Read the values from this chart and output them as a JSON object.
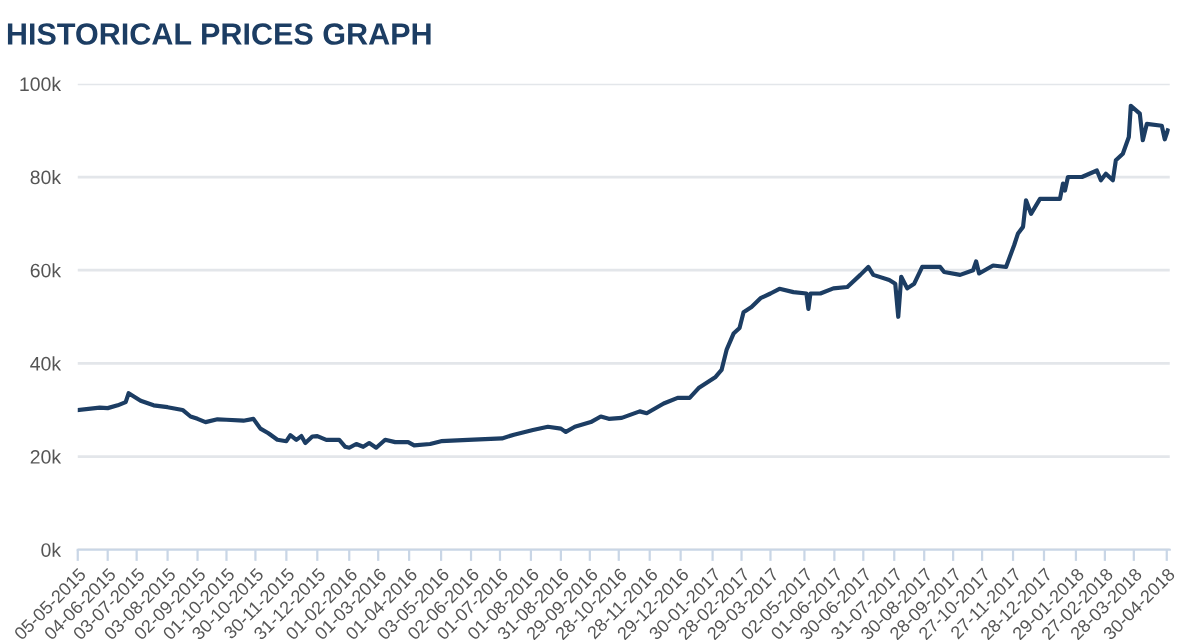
{
  "chart_data": {
    "type": "line",
    "title": "HISTORICAL PRICES GRAPH",
    "x": [
      "2015-05-05",
      "2015-05-27",
      "2015-06-04",
      "2015-06-14",
      "2015-06-22",
      "2015-06-25",
      "2015-07-07",
      "2015-07-20",
      "2015-08-03",
      "2015-08-18",
      "2015-08-26",
      "2015-09-02",
      "2015-09-10",
      "2015-09-22",
      "2015-10-01",
      "2015-10-18",
      "2015-10-28",
      "2015-11-04",
      "2015-11-12",
      "2015-11-21",
      "2015-11-30",
      "2015-12-04",
      "2015-12-10",
      "2015-12-15",
      "2015-12-19",
      "2015-12-26",
      "2015-12-31",
      "2016-01-09",
      "2016-01-22",
      "2016-01-28",
      "2016-02-01",
      "2016-02-08",
      "2016-02-15",
      "2016-02-21",
      "2016-02-28",
      "2016-03-08",
      "2016-03-18",
      "2016-03-31",
      "2016-04-06",
      "2016-04-22",
      "2016-05-03",
      "2016-05-30",
      "2016-07-03",
      "2016-07-15",
      "2016-08-03",
      "2016-08-18",
      "2016-08-31",
      "2016-09-05",
      "2016-09-14",
      "2016-09-30",
      "2016-10-10",
      "2016-10-18",
      "2016-10-31",
      "2016-11-18",
      "2016-11-25",
      "2016-12-12",
      "2016-12-26",
      "2017-01-07",
      "2017-01-16",
      "2017-02-02",
      "2017-02-08",
      "2017-02-13",
      "2017-02-20",
      "2017-02-26",
      "2017-03-02",
      "2017-03-10",
      "2017-03-19",
      "2017-03-29",
      "2017-04-07",
      "2017-04-21",
      "2017-05-04",
      "2017-05-06",
      "2017-05-08",
      "2017-05-18",
      "2017-05-31",
      "2017-06-14",
      "2017-06-27",
      "2017-07-05",
      "2017-07-10",
      "2017-07-26",
      "2017-08-01",
      "2017-08-04",
      "2017-08-07",
      "2017-08-13",
      "2017-08-20",
      "2017-08-28",
      "2017-09-15",
      "2017-09-19",
      "2017-10-05",
      "2017-10-18",
      "2017-10-21",
      "2017-10-24",
      "2017-11-07",
      "2017-11-20",
      "2017-11-28",
      "2017-12-02",
      "2017-12-07",
      "2017-12-10",
      "2017-12-15",
      "2017-12-24",
      "2018-01-13",
      "2018-01-16",
      "2018-01-18",
      "2018-01-21",
      "2018-02-04",
      "2018-02-19",
      "2018-02-23",
      "2018-02-28",
      "2018-03-07",
      "2018-03-10",
      "2018-03-17",
      "2018-03-23",
      "2018-03-25",
      "2018-04-03",
      "2018-04-06",
      "2018-04-10",
      "2018-04-25",
      "2018-04-28",
      "2018-05-01"
    ],
    "series": [
      {
        "color": "#1c3d63",
        "values": [
          30.0,
          30.5,
          30.4,
          31.0,
          31.7,
          33.6,
          32.0,
          31.0,
          30.6,
          30.0,
          28.6,
          28.1,
          27.4,
          28.0,
          27.9,
          27.7,
          28.1,
          26.0,
          25.0,
          23.6,
          23.3,
          24.6,
          23.6,
          24.4,
          22.9,
          24.3,
          24.4,
          23.6,
          23.6,
          22.1,
          21.9,
          22.7,
          22.1,
          22.9,
          21.9,
          23.6,
          23.1,
          23.1,
          22.4,
          22.7,
          23.3,
          23.6,
          23.9,
          24.7,
          25.7,
          26.4,
          26.0,
          25.3,
          26.4,
          27.4,
          28.6,
          28.1,
          28.3,
          29.7,
          29.3,
          31.4,
          32.6,
          32.6,
          34.7,
          37.1,
          38.6,
          42.9,
          46.4,
          47.6,
          51.0,
          52.1,
          54.0,
          55.0,
          56.0,
          55.3,
          55.0,
          51.7,
          55.0,
          55.0,
          56.1,
          56.4,
          59.0,
          60.7,
          59.0,
          57.9,
          57.1,
          50.0,
          58.6,
          56.1,
          57.1,
          60.7,
          60.7,
          59.6,
          59.0,
          60.0,
          61.9,
          59.3,
          61.0,
          60.7,
          65.3,
          67.9,
          69.3,
          75.0,
          72.1,
          75.3,
          75.3,
          78.6,
          77.1,
          80.0,
          80.0,
          81.4,
          79.3,
          80.7,
          79.3,
          83.6,
          85.0,
          88.6,
          95.3,
          93.6,
          87.9,
          91.4,
          91.0,
          88.1,
          90.0
        ]
      }
    ],
    "xlim": [
      "2015-05-05",
      "2018-05-03"
    ],
    "xticks": [
      {
        "value": "2015-05-05",
        "label": "05-05-2015"
      },
      {
        "value": "2015-06-04",
        "label": "04-06-2015"
      },
      {
        "value": "2015-07-03",
        "label": "03-07-2015"
      },
      {
        "value": "2015-08-03",
        "label": "03-08-2015"
      },
      {
        "value": "2015-09-02",
        "label": "02-09-2015"
      },
      {
        "value": "2015-10-01",
        "label": "01-10-2015"
      },
      {
        "value": "2015-10-30",
        "label": "30-10-2015"
      },
      {
        "value": "2015-11-30",
        "label": "30-11-2015"
      },
      {
        "value": "2015-12-31",
        "label": "31-12-2015"
      },
      {
        "value": "2016-02-01",
        "label": "01-02-2016"
      },
      {
        "value": "2016-03-01",
        "label": "01-03-2016"
      },
      {
        "value": "2016-04-01",
        "label": "01-04-2016"
      },
      {
        "value": "2016-05-03",
        "label": "03-05-2016"
      },
      {
        "value": "2016-06-02",
        "label": "02-06-2016"
      },
      {
        "value": "2016-07-01",
        "label": "01-07-2016"
      },
      {
        "value": "2016-08-01",
        "label": "01-08-2016"
      },
      {
        "value": "2016-08-31",
        "label": "31-08-2016"
      },
      {
        "value": "2016-09-29",
        "label": "29-09-2016"
      },
      {
        "value": "2016-10-28",
        "label": "28-10-2016"
      },
      {
        "value": "2016-11-28",
        "label": "28-11-2016"
      },
      {
        "value": "2016-12-29",
        "label": "29-12-2016"
      },
      {
        "value": "2017-01-30",
        "label": "30-01-2017"
      },
      {
        "value": "2017-02-28",
        "label": "28-02-2017"
      },
      {
        "value": "2017-03-29",
        "label": "29-03-2017"
      },
      {
        "value": "2017-05-02",
        "label": "02-05-2017"
      },
      {
        "value": "2017-06-01",
        "label": "01-06-2017"
      },
      {
        "value": "2017-06-30",
        "label": "30-06-2017"
      },
      {
        "value": "2017-07-31",
        "label": "31-07-2017"
      },
      {
        "value": "2017-08-30",
        "label": "30-08-2017"
      },
      {
        "value": "2017-09-28",
        "label": "28-09-2017"
      },
      {
        "value": "2017-10-27",
        "label": "27-10-2017"
      },
      {
        "value": "2017-11-27",
        "label": "27-11-2017"
      },
      {
        "value": "2017-12-28",
        "label": "28-12-2017"
      },
      {
        "value": "2018-01-29",
        "label": "29-01-2018"
      },
      {
        "value": "2018-02-27",
        "label": "27-02-2018"
      },
      {
        "value": "2018-03-28",
        "label": "28-03-2018"
      },
      {
        "value": "2018-04-30",
        "label": "30-04-2018"
      }
    ],
    "ylim": [
      0,
      100
    ],
    "yticks": [
      {
        "value": 0,
        "label": "0k"
      },
      {
        "value": 20,
        "label": "20k"
      },
      {
        "value": 40,
        "label": "40k"
      },
      {
        "value": 60,
        "label": "60k"
      },
      {
        "value": 80,
        "label": "80k"
      },
      {
        "value": 100,
        "label": "100k"
      }
    ],
    "grid": "y",
    "marker": "none",
    "line_style": "solid"
  }
}
